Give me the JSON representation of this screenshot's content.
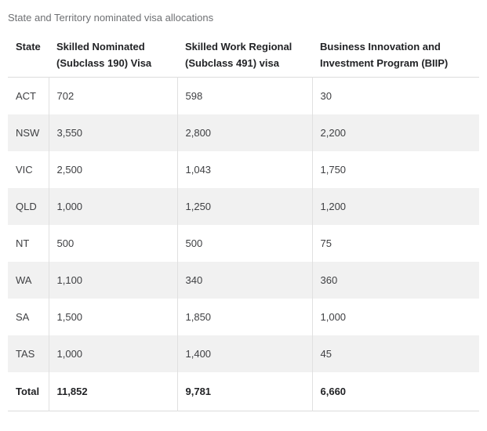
{
  "caption": "State and Territory nominated visa allocations",
  "table": {
    "columns": [
      "State",
      "Skilled Nominated (Subclass 190) Visa",
      "Skilled Work Regional (Subclass 491) visa",
      "Business Innovation and Investment Program (BIIP)"
    ],
    "rows": [
      [
        "ACT",
        "702",
        "598",
        "30"
      ],
      [
        "NSW",
        "3,550",
        "2,800",
        "2,200"
      ],
      [
        "VIC",
        "2,500",
        "1,043",
        "1,750"
      ],
      [
        "QLD",
        "1,000",
        "1,250",
        "1,200"
      ],
      [
        "NT",
        "500",
        "500",
        "75"
      ],
      [
        "WA",
        "1,100",
        "340",
        "360"
      ],
      [
        "SA",
        "1,500",
        "1,850",
        "1,000"
      ],
      [
        "TAS",
        "1,000",
        "1,400",
        "45"
      ]
    ],
    "total": [
      "Total",
      "11,852",
      "9,781",
      "6,660"
    ]
  },
  "colors": {
    "stripe_background": "#f1f1f1",
    "border": "#e0e0e0",
    "caption_text": "#6e7073",
    "header_text": "#222326",
    "body_text": "#3f4043"
  }
}
